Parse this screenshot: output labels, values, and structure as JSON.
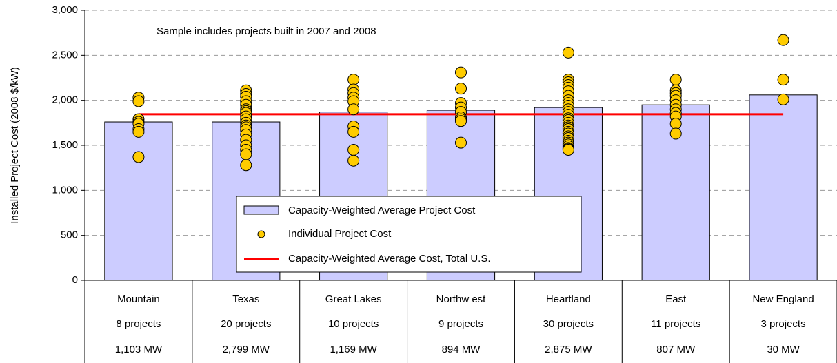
{
  "chart_data": {
    "type": "bar",
    "annotation": "Sample includes projects built in 2007 and 2008",
    "y_label": "Installed Project Cost (2008 $/kW)",
    "categories": [
      "Mountain",
      "Texas",
      "Great Lakes",
      "Northw est",
      "Heartland",
      "East",
      "New  England"
    ],
    "projects": [
      "8 projects",
      "20 projects",
      "10 projects",
      "9 projects",
      "30 projects",
      "11 projects",
      "3 projects"
    ],
    "capacity": [
      "1,103 MW",
      "2,799 MW",
      "1,169 MW",
      "894 MW",
      "2,875 MW",
      "807 MW",
      "30 MW"
    ],
    "series": [
      {
        "name": "Capacity-Weighted Average Project Cost",
        "color": "#ccccff",
        "values": [
          1760,
          1760,
          1870,
          1890,
          1920,
          1950,
          2060
        ]
      },
      {
        "name": "Individual Project Cost",
        "color": "#ffcc00",
        "values": [
          [
            2030,
            1990,
            1790,
            1760,
            1740,
            1680,
            1650,
            1370
          ],
          [
            2110,
            2070,
            2040,
            1990,
            1950,
            1900,
            1880,
            1860,
            1820,
            1790,
            1750,
            1720,
            1700,
            1670,
            1620,
            1560,
            1500,
            1450,
            1400,
            1280
          ],
          [
            2230,
            2120,
            2080,
            2030,
            1990,
            1900,
            1710,
            1650,
            1450,
            1330
          ],
          [
            2310,
            2130,
            1970,
            1920,
            1870,
            1810,
            1790,
            1770,
            1530
          ],
          [
            2530,
            2230,
            2200,
            2170,
            2140,
            2100,
            2050,
            2000,
            1970,
            1940,
            1900,
            1870,
            1840,
            1800,
            1780,
            1750,
            1720,
            1700,
            1680,
            1650,
            1630,
            1600,
            1580,
            1550,
            1530,
            1510,
            1490,
            1470,
            1460,
            1450
          ],
          [
            2230,
            2110,
            2080,
            2050,
            2000,
            1950,
            1900,
            1860,
            1820,
            1740,
            1630
          ],
          [
            2670,
            2230,
            2010
          ]
        ]
      },
      {
        "name": "Capacity-Weighted Average Cost, Total U.S.",
        "color": "#ff0000",
        "value": 1845
      }
    ],
    "ylim": [
      0,
      3000
    ],
    "yticks": [
      0,
      500,
      {
        "value": 1000,
        "label": "1,000"
      },
      {
        "value": 1500,
        "label": "1,500"
      },
      {
        "value": 2000,
        "label": "2,000"
      },
      {
        "value": 2500,
        "label": "2,500"
      },
      {
        "value": 3000,
        "label": "3,000"
      }
    ],
    "grid": true
  }
}
